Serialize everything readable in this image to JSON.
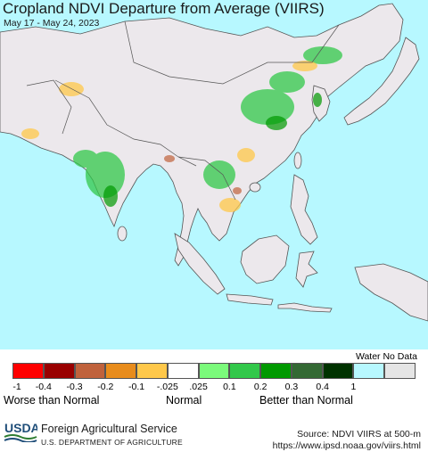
{
  "header": {
    "title": "Cropland NDVI Departure from Average (VIIRS)",
    "date_range": "May 17 - May 24, 2023"
  },
  "colors": {
    "ocean": "#b7f8ff",
    "land": "#ece8ec",
    "border": "#555555"
  },
  "legend": {
    "water_no_data_label": "Water No Data",
    "swatch_colors": [
      "#ff0000",
      "#990000",
      "#c0623c",
      "#e88c1c",
      "#ffc84a",
      "#ffffff",
      "#7bfa7b",
      "#32c84a",
      "#009900",
      "#346934",
      "#003200",
      "#b7f8ff",
      "#e5e5e5"
    ],
    "tick_labels": [
      "-1",
      "-0.4",
      "-0.3",
      "-0.2",
      "-0.1",
      "-.025",
      ".025",
      "0.1",
      "0.2",
      "0.3",
      "0.4",
      "1"
    ],
    "categories": {
      "worse": "Worse than Normal",
      "normal": "Normal",
      "better": "Better than Normal"
    }
  },
  "footer": {
    "logo_text": "USDA",
    "agency": "Foreign Agricultural Service",
    "department": "U.S. DEPARTMENT OF AGRICULTURE",
    "source": "Source: NDVI VIIRS at 500-m",
    "url": "https://www.ipsd.noaa.gov/viirs.html"
  }
}
